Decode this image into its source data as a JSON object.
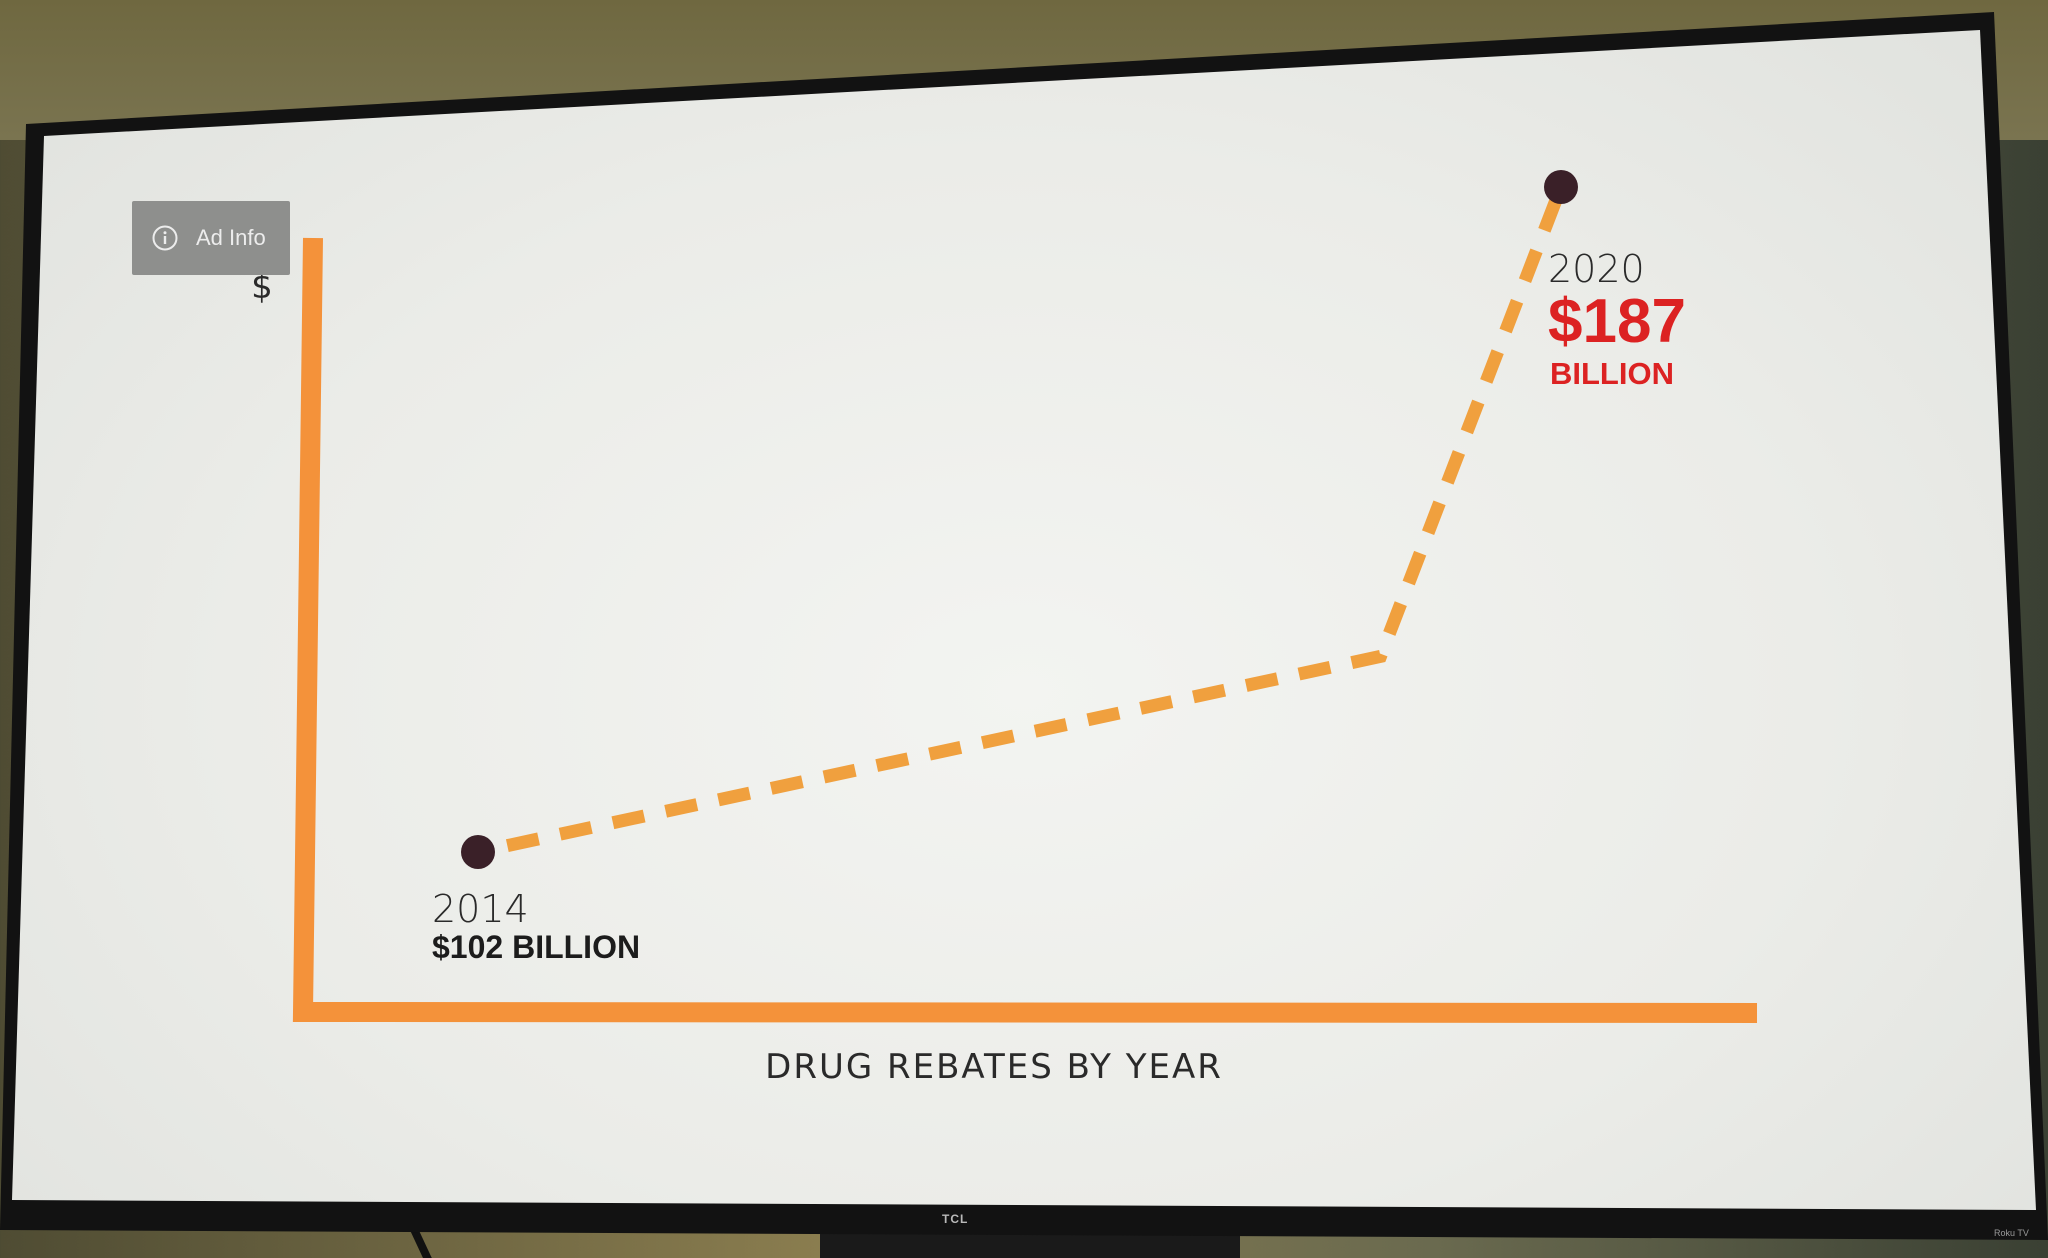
{
  "ad_info": {
    "label": "Ad Info",
    "icon": "info-icon"
  },
  "device": {
    "brand": "TCL",
    "badge": "Roku TV"
  },
  "colors": {
    "axis": "#f4923a",
    "line": "#f0a03e",
    "point": "#3a2028",
    "highlight": "#dc2222",
    "text": "#2a2a2a"
  },
  "chart_data": {
    "type": "line",
    "title": "",
    "xlabel": "DRUG REBATES BY YEAR",
    "ylabel": "$",
    "series": [
      {
        "values": [
          {
            "x": 2014,
            "y": 102
          },
          {
            "x": 2019,
            "y": 127
          },
          {
            "x": 2020,
            "y": 187
          }
        ]
      }
    ],
    "points": [
      {
        "year": "2014",
        "value": 102,
        "label": "$102 BILLION",
        "value_text": "$102",
        "unit_text": "BILLION"
      },
      {
        "year": "2020",
        "value": 187,
        "label": "$187 BILLION",
        "value_text": "$187",
        "unit_text": "BILLION"
      }
    ],
    "line_style": "dashed",
    "grid": false,
    "legend": false
  }
}
